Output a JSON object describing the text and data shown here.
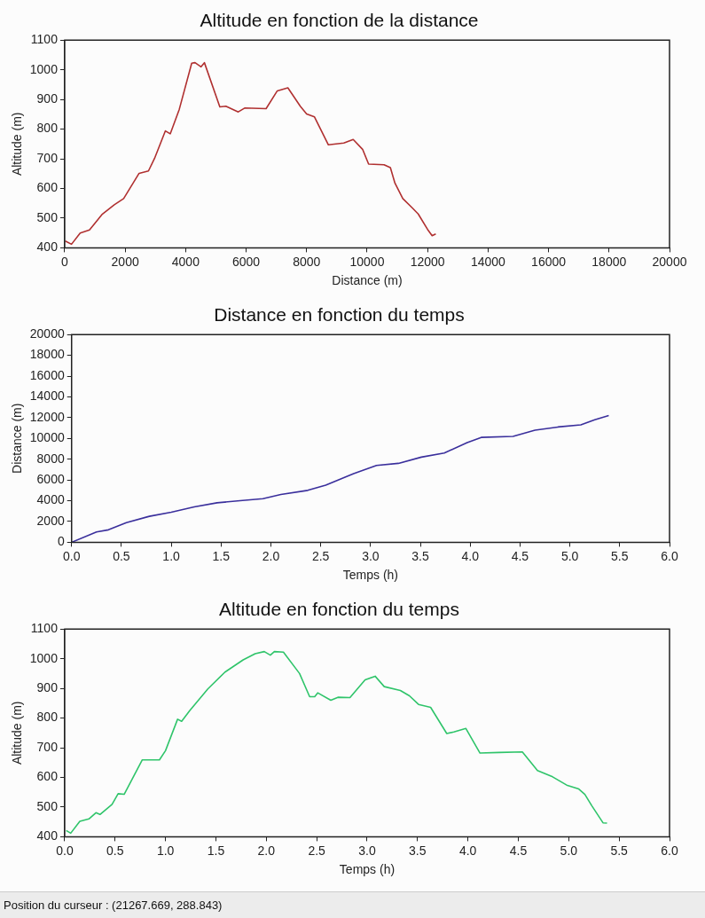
{
  "chart_data": [
    {
      "type": "line",
      "title": "Altitude en fonction de la distance",
      "xlabel": "Distance (m)",
      "ylabel": "Altitude (m)",
      "x": [
        20,
        225,
        513,
        820,
        1230,
        1640,
        1950,
        2460,
        2770,
        2970,
        3330,
        3490,
        3790,
        4200,
        4310,
        4510,
        4620,
        5130,
        5330,
        5740,
        5950,
        6660,
        7030,
        7380,
        7790,
        8000,
        8260,
        8720,
        9230,
        9540,
        9850,
        10050,
        10560,
        10770,
        10920,
        11180,
        11490,
        11690,
        12000,
        12150,
        12270
      ],
      "series": [
        {
          "color": "#b03030",
          "values": [
            423,
            412,
            450,
            460,
            512,
            545,
            566,
            651,
            659,
            701,
            794,
            784,
            867,
            1022,
            1024,
            1010,
            1024,
            875,
            877,
            858,
            871,
            869,
            929,
            939,
            877,
            851,
            841,
            747,
            753,
            765,
            732,
            682,
            680,
            670,
            618,
            566,
            535,
            514,
            462,
            441,
            447
          ]
        }
      ],
      "xlim": [
        0,
        20000
      ],
      "xticks": [
        0,
        2000,
        4000,
        6000,
        8000,
        10000,
        12000,
        14000,
        16000,
        18000,
        20000
      ],
      "ylim": [
        400,
        1100
      ],
      "yticks": [
        400,
        500,
        600,
        700,
        800,
        900,
        1000,
        1100
      ],
      "grid": false,
      "legend": false,
      "marker": "none",
      "line_style": "solid"
    },
    {
      "type": "line",
      "title": "Distance en fonction du temps",
      "xlabel": "Temps (h)",
      "ylabel": "Distance (m)",
      "x": [
        0,
        0.25,
        0.37,
        0.55,
        0.78,
        1.0,
        1.23,
        1.46,
        1.69,
        1.92,
        2.1,
        2.37,
        2.55,
        2.83,
        3.06,
        3.28,
        3.51,
        3.74,
        3.97,
        4.11,
        4.43,
        4.65,
        4.88,
        5.11,
        5.25,
        5.39
      ],
      "series": [
        {
          "color": "#3a2f9c",
          "values": [
            0,
            1000,
            1200,
            1900,
            2500,
            2900,
            3400,
            3800,
            4000,
            4200,
            4600,
            5000,
            5500,
            6600,
            7400,
            7600,
            8200,
            8600,
            9600,
            10100,
            10200,
            10800,
            11100,
            11300,
            11800,
            12200
          ]
        }
      ],
      "xlim": [
        0,
        6
      ],
      "xticks": [
        {
          "value": 0,
          "label": "0.0"
        },
        {
          "value": 0.5,
          "label": "0.5"
        },
        {
          "value": 1,
          "label": "1.0"
        },
        {
          "value": 1.5,
          "label": "1.5"
        },
        {
          "value": 2,
          "label": "2.0"
        },
        {
          "value": 2.5,
          "label": "2.5"
        },
        {
          "value": 3,
          "label": "3.0"
        },
        {
          "value": 3.5,
          "label": "3.5"
        },
        {
          "value": 4,
          "label": "4.0"
        },
        {
          "value": 4.5,
          "label": "4.5"
        },
        {
          "value": 5,
          "label": "5.0"
        },
        {
          "value": 5.5,
          "label": "5.5"
        },
        {
          "value": 6,
          "label": "6.0"
        }
      ],
      "ylim": [
        0,
        20000
      ],
      "yticks": [
        0,
        2000,
        4000,
        6000,
        8000,
        10000,
        12000,
        14000,
        16000,
        18000,
        20000
      ],
      "grid": false,
      "legend": false,
      "marker": "none",
      "line_style": "solid"
    },
    {
      "type": "line",
      "title": "Altitude en fonction du temps",
      "xlabel": "Temps (h)",
      "ylabel": "Altitude (m)",
      "x": [
        0.015,
        0.06,
        0.15,
        0.24,
        0.31,
        0.35,
        0.47,
        0.53,
        0.59,
        0.77,
        0.94,
        1.0,
        1.12,
        1.16,
        1.24,
        1.42,
        1.59,
        1.77,
        1.89,
        1.98,
        2.04,
        2.08,
        2.17,
        2.33,
        2.43,
        2.48,
        2.51,
        2.64,
        2.71,
        2.83,
        2.98,
        3.08,
        3.17,
        3.33,
        3.42,
        3.51,
        3.63,
        3.79,
        3.86,
        3.98,
        4.12,
        4.31,
        4.54,
        4.69,
        4.84,
        4.98,
        5.1,
        5.16,
        5.23,
        5.34,
        5.38
      ],
      "series": [
        {
          "color": "#2fc46a",
          "values": [
            421,
            412,
            452,
            460,
            481,
            475,
            509,
            545,
            543,
            659,
            659,
            690,
            796,
            789,
            825,
            898,
            955,
            996,
            1017,
            1024,
            1012,
            1024,
            1022,
            950,
            872,
            872,
            885,
            860,
            870,
            869,
            929,
            941,
            906,
            893,
            875,
            846,
            836,
            748,
            753,
            765,
            682,
            684,
            686,
            623,
            602,
            574,
            561,
            543,
            504,
            447,
            446
          ]
        }
      ],
      "xlim": [
        0,
        6
      ],
      "xticks": [
        {
          "value": 0,
          "label": "0.0"
        },
        {
          "value": 0.5,
          "label": "0.5"
        },
        {
          "value": 1,
          "label": "1.0"
        },
        {
          "value": 1.5,
          "label": "1.5"
        },
        {
          "value": 2,
          "label": "2.0"
        },
        {
          "value": 2.5,
          "label": "2.5"
        },
        {
          "value": 3,
          "label": "3.0"
        },
        {
          "value": 3.5,
          "label": "3.5"
        },
        {
          "value": 4,
          "label": "4.0"
        },
        {
          "value": 4.5,
          "label": "4.5"
        },
        {
          "value": 5,
          "label": "5.0"
        },
        {
          "value": 5.5,
          "label": "5.5"
        },
        {
          "value": 6,
          "label": "6.0"
        }
      ],
      "ylim": [
        400,
        1100
      ],
      "yticks": [
        400,
        500,
        600,
        700,
        800,
        900,
        1000,
        1100
      ],
      "grid": false,
      "legend": false,
      "marker": "none",
      "line_style": "solid",
      "annotations": [
        "Position du curseur : (21267.669, 288.843)"
      ]
    }
  ]
}
